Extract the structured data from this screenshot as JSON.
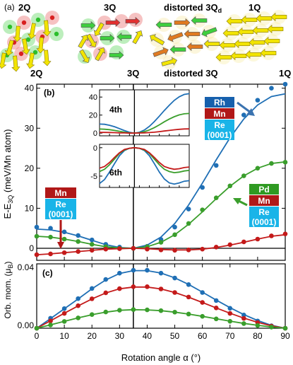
{
  "panel_a": {
    "label": "(a)",
    "configs": [
      {
        "name": "2Q"
      },
      {
        "name": "3Q"
      },
      {
        "name": "distorted 3Q",
        "sub": "d"
      },
      {
        "name": "1Q"
      }
    ]
  },
  "top_markers": [
    "2Q",
    "3Q",
    "distorted 3Q",
    "1Q"
  ],
  "colors": {
    "blue": "#1f6fb5",
    "red": "#c41a1a",
    "green": "#3a9e2c",
    "cyan": "#19b4e8",
    "darkred": "#b01818",
    "greenbox": "#2f9a22",
    "bluebox": "#1660ad",
    "arrow": "#3b73b0"
  },
  "chart_data": [
    {
      "panel": "(b)",
      "type": "line",
      "xlabel": "Rotation angle α (°)",
      "ylabel": "E-E3Q (meV/Mn atom)",
      "ylabel_main": "E-E",
      "ylabel_sub": "3Q",
      "ylabel_rest": " (meV/Mn atom)",
      "xlim": [
        0,
        90
      ],
      "ylim": [
        -3,
        41
      ],
      "xticks": [
        0,
        10,
        20,
        30,
        40,
        50,
        60,
        70,
        80,
        90
      ],
      "yticks": [
        0,
        10,
        20,
        30,
        40
      ],
      "labels": {
        "rh": [
          "Rh",
          "Mn",
          "Re",
          "(0001)"
        ],
        "pd": [
          "Pd",
          "Mn",
          "Re",
          "(0001)"
        ],
        "mn": [
          "Mn",
          "Re",
          "(0001)"
        ]
      },
      "series": [
        {
          "color": "blue",
          "points": {
            "x": [
              0,
              5,
              10,
              15,
              20,
              25,
              30,
              35,
              40,
              45,
              50,
              55,
              60,
              65,
              70,
              75,
              80,
              85,
              90
            ],
            "y": [
              5.3,
              5.0,
              4.1,
              3.2,
              2.1,
              1.0,
              0.3,
              0.0,
              0.5,
              2.2,
              5.3,
              9.8,
              15.2,
              20.7,
              27.9,
              33.3,
              37.0,
              40.0,
              41.0
            ]
          },
          "fit": {
            "x": [
              0,
              5,
              10,
              15,
              20,
              25,
              30,
              35,
              40,
              45,
              50,
              55,
              60,
              65,
              70,
              75,
              80,
              85,
              90
            ],
            "y": [
              4.8,
              4.6,
              4.0,
              3.1,
              2.0,
              0.9,
              0.2,
              0.0,
              0.8,
              2.8,
              6.2,
              10.8,
              16.3,
              22.1,
              27.6,
              32.3,
              35.8,
              37.9,
              38.6
            ]
          }
        },
        {
          "color": "green",
          "points": {
            "x": [
              0,
              5,
              10,
              15,
              20,
              25,
              30,
              35,
              40,
              45,
              50,
              55,
              60,
              65,
              70,
              75,
              80,
              85,
              90
            ],
            "y": [
              3.0,
              2.8,
              2.3,
              1.7,
              1.0,
              0.4,
              0.0,
              0.0,
              0.4,
              1.5,
              3.4,
              6.2,
              9.6,
              12.6,
              15.6,
              18.1,
              20.0,
              21.2,
              21.5
            ]
          },
          "fit": {
            "x": [
              0,
              5,
              10,
              15,
              20,
              25,
              30,
              35,
              40,
              45,
              50,
              55,
              60,
              65,
              70,
              75,
              80,
              85,
              90
            ],
            "y": [
              3.0,
              2.8,
              2.3,
              1.7,
              1.0,
              0.4,
              0.1,
              0.0,
              0.4,
              1.5,
              3.4,
              6.0,
              9.1,
              12.4,
              15.5,
              18.1,
              20.0,
              21.2,
              21.6
            ]
          }
        },
        {
          "color": "red",
          "points": {
            "x": [
              0,
              5,
              10,
              15,
              20,
              25,
              30,
              35,
              40,
              45,
              50,
              55,
              60,
              65,
              70,
              75,
              80,
              85,
              90
            ],
            "y": [
              -1.6,
              -1.4,
              -1.1,
              -0.8,
              -0.5,
              -0.2,
              -0.1,
              0.0,
              -0.2,
              -0.4,
              -0.5,
              -0.4,
              -0.2,
              0.3,
              0.9,
              1.6,
              2.3,
              3.1,
              3.6
            ]
          },
          "fit": {
            "x": [
              0,
              5,
              10,
              15,
              20,
              25,
              30,
              35,
              40,
              45,
              50,
              55,
              60,
              65,
              70,
              75,
              80,
              85,
              90
            ],
            "y": [
              -1.6,
              -1.4,
              -1.1,
              -0.8,
              -0.5,
              -0.2,
              -0.1,
              0.0,
              -0.1,
              -0.3,
              -0.4,
              -0.4,
              -0.2,
              0.2,
              0.8,
              1.5,
              2.3,
              3.0,
              3.4
            ]
          }
        }
      ]
    },
    {
      "panel": "inset 4th",
      "type": "line",
      "label": "4th",
      "xlim": [
        0,
        90
      ],
      "ylim": [
        -3,
        48
      ],
      "yticks": [
        0,
        20,
        40
      ],
      "series": [
        {
          "color": "blue",
          "x": [
            0,
            5,
            10,
            15,
            20,
            25,
            30,
            35,
            40,
            45,
            50,
            55,
            60,
            65,
            70,
            75,
            80,
            85,
            90
          ],
          "y": [
            10.0,
            9.8,
            8.7,
            7.1,
            5.0,
            2.8,
            0.9,
            0.0,
            0.9,
            3.4,
            7.5,
            12.8,
            18.8,
            25.1,
            31.0,
            36.3,
            40.3,
            42.9,
            43.8
          ]
        },
        {
          "color": "green",
          "x": [
            0,
            5,
            10,
            15,
            20,
            25,
            30,
            35,
            40,
            45,
            50,
            55,
            60,
            65,
            70,
            75,
            80,
            85,
            90
          ],
          "y": [
            4.5,
            4.3,
            3.8,
            3.0,
            2.0,
            1.0,
            0.2,
            0.0,
            0.4,
            1.6,
            3.5,
            6.1,
            9.2,
            12.5,
            15.6,
            18.2,
            20.2,
            21.4,
            21.8
          ]
        },
        {
          "color": "red",
          "x": [
            0,
            5,
            10,
            15,
            20,
            25,
            30,
            35,
            40,
            45,
            50,
            55,
            60,
            65,
            70,
            75,
            80,
            85,
            90
          ],
          "y": [
            0.8,
            0.8,
            0.7,
            0.5,
            0.3,
            0.2,
            0.0,
            0.0,
            0.1,
            0.3,
            0.6,
            1.0,
            1.6,
            2.3,
            3.0,
            3.7,
            4.2,
            4.6,
            4.7
          ]
        }
      ]
    },
    {
      "panel": "inset 6th",
      "type": "line",
      "label": "6th",
      "xlim": [
        0,
        90
      ],
      "ylim": [
        -7,
        0.6
      ],
      "yticks": [
        -5,
        0
      ],
      "series": [
        {
          "color": "blue",
          "x": [
            0,
            5,
            10,
            15,
            20,
            25,
            30,
            35,
            40,
            45,
            50,
            55,
            60,
            65,
            70,
            75,
            80,
            85,
            90
          ],
          "y": [
            -6.3,
            -5.6,
            -4.3,
            -2.8,
            -1.4,
            -0.5,
            -0.1,
            0.0,
            -0.1,
            -0.5,
            -1.4,
            -2.8,
            -4.3,
            -5.5,
            -6.2,
            -6.4,
            -6.2,
            -5.9,
            -5.8
          ]
        },
        {
          "color": "green",
          "x": [
            0,
            5,
            10,
            15,
            20,
            25,
            30,
            35,
            40,
            45,
            50,
            55,
            60,
            65,
            70,
            75,
            80,
            85,
            90
          ],
          "y": [
            -4.2,
            -3.8,
            -3.0,
            -2.0,
            -1.0,
            -0.4,
            -0.1,
            0.0,
            -0.1,
            -0.4,
            -1.0,
            -2.0,
            -3.0,
            -3.8,
            -4.2,
            -4.4,
            -4.3,
            -4.1,
            -4.0
          ]
        },
        {
          "color": "red",
          "x": [
            0,
            5,
            10,
            15,
            20,
            25,
            30,
            35,
            40,
            45,
            50,
            55,
            60,
            65,
            70,
            75,
            80,
            85,
            90
          ],
          "y": [
            -3.6,
            -3.3,
            -2.6,
            -1.7,
            -0.9,
            -0.3,
            -0.1,
            0.0,
            -0.1,
            -0.3,
            -0.9,
            -1.7,
            -2.6,
            -3.3,
            -3.6,
            -3.8,
            -3.7,
            -3.5,
            -3.4
          ]
        }
      ]
    },
    {
      "panel": "(c)",
      "type": "line",
      "xlabel": "Rotation angle α (°)",
      "ylabel_main": "Orb. mom. (μ",
      "ylabel_sub": "B",
      "ylabel_rest": ")",
      "xlim": [
        0,
        90
      ],
      "ylim": [
        0,
        0.04
      ],
      "yticks": [
        0.0,
        0.04
      ],
      "ytick_labels": [
        "0.00",
        "0.04"
      ],
      "series": [
        {
          "color": "blue",
          "points": {
            "x": [
              0,
              5,
              10,
              15,
              20,
              25,
              30,
              35,
              40,
              45,
              50,
              55,
              60,
              65,
              70,
              75,
              80,
              85,
              90
            ],
            "y": [
              0.0,
              0.0062,
              0.0122,
              0.0184,
              0.0247,
              0.0303,
              0.0342,
              0.036,
              0.036,
              0.0342,
              0.0312,
              0.0271,
              0.0222,
              0.0172,
              0.0124,
              0.0082,
              0.0045,
              0.0015,
              0.0
            ]
          },
          "fit": {
            "x": [
              0,
              5,
              10,
              15,
              20,
              25,
              30,
              35,
              40,
              45,
              50,
              55,
              60,
              65,
              70,
              75,
              80,
              85,
              90
            ],
            "y": [
              0.0,
              0.006,
              0.0121,
              0.0182,
              0.0245,
              0.03,
              0.034,
              0.0358,
              0.0358,
              0.0343,
              0.0313,
              0.0272,
              0.0224,
              0.0175,
              0.0128,
              0.0085,
              0.0048,
              0.0018,
              0.0
            ]
          }
        },
        {
          "color": "red",
          "points": {
            "x": [
              0,
              5,
              10,
              15,
              20,
              25,
              30,
              35,
              40,
              45,
              50,
              55,
              60,
              65,
              70,
              75,
              80,
              85,
              90
            ],
            "y": [
              0.0,
              0.0045,
              0.0092,
              0.014,
              0.0183,
              0.022,
              0.0246,
              0.0258,
              0.0258,
              0.0244,
              0.0222,
              0.0194,
              0.016,
              0.0126,
              0.0092,
              0.0061,
              0.0035,
              0.0013,
              0.0
            ]
          },
          "fit": {
            "x": [
              0,
              5,
              10,
              15,
              20,
              25,
              30,
              35,
              40,
              45,
              50,
              55,
              60,
              65,
              70,
              75,
              80,
              85,
              90
            ],
            "y": [
              0.0,
              0.0046,
              0.0093,
              0.0139,
              0.0182,
              0.0219,
              0.0245,
              0.0256,
              0.0256,
              0.0244,
              0.0222,
              0.0193,
              0.016,
              0.0126,
              0.0093,
              0.0063,
              0.0037,
              0.0015,
              0.0
            ]
          }
        },
        {
          "color": "green",
          "points": {
            "x": [
              0,
              5,
              10,
              15,
              20,
              25,
              30,
              35,
              40,
              45,
              50,
              55,
              60,
              65,
              70,
              75,
              80,
              85,
              90
            ],
            "y": [
              0.0,
              0.002,
              0.0042,
              0.0064,
              0.0085,
              0.0101,
              0.0112,
              0.0116,
              0.0114,
              0.0109,
              0.01,
              0.0088,
              0.0074,
              0.0058,
              0.0043,
              0.0029,
              0.0017,
              0.0007,
              0.0
            ]
          },
          "fit": {
            "x": [
              0,
              5,
              10,
              15,
              20,
              25,
              30,
              35,
              40,
              45,
              50,
              55,
              60,
              65,
              70,
              75,
              80,
              85,
              90
            ],
            "y": [
              0.0,
              0.0021,
              0.0043,
              0.0064,
              0.0084,
              0.01,
              0.0111,
              0.0115,
              0.0114,
              0.0109,
              0.01,
              0.0088,
              0.0074,
              0.0059,
              0.0044,
              0.003,
              0.0018,
              0.0008,
              0.0
            ]
          }
        }
      ]
    }
  ]
}
